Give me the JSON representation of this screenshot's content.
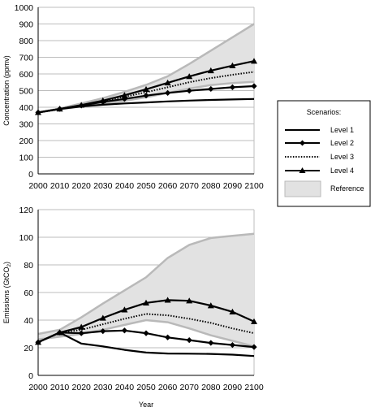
{
  "chart_data": [
    {
      "type": "line",
      "title": "",
      "xlabel": "",
      "ylabel": "Concentration (ppmv)",
      "x": [
        2000,
        2010,
        2020,
        2030,
        2040,
        2050,
        2060,
        2070,
        2080,
        2090,
        2100
      ],
      "xlim": [
        2000,
        2100
      ],
      "ylim": [
        0,
        1000
      ],
      "yticks": [
        0,
        100,
        200,
        300,
        400,
        500,
        600,
        700,
        800,
        900,
        1000
      ],
      "grid": "horizontal",
      "series": [
        {
          "name": "Level 1",
          "style": "solid",
          "marker": "none",
          "values": [
            369,
            390,
            405,
            415,
            423,
            429,
            435,
            440,
            444,
            447,
            450
          ]
        },
        {
          "name": "Level 2",
          "style": "solid",
          "marker": "diamond",
          "values": [
            369,
            390,
            410,
            432,
            450,
            470,
            486,
            499,
            510,
            520,
            527
          ]
        },
        {
          "name": "Level 3",
          "style": "dotted",
          "marker": "none",
          "values": [
            369,
            390,
            412,
            437,
            463,
            490,
            520,
            550,
            575,
            595,
            612
          ]
        },
        {
          "name": "Level 4",
          "style": "solid",
          "marker": "triangle",
          "values": [
            369,
            390,
            413,
            440,
            472,
            508,
            547,
            585,
            620,
            650,
            677
          ]
        }
      ],
      "reference_band": {
        "name": "Reference",
        "upper": [
          369,
          392,
          423,
          454,
          492,
          534,
          586,
          660,
          740,
          820,
          900
        ],
        "lower": [
          369,
          388,
          405,
          420,
          438,
          460,
          486,
          512,
          533,
          545,
          552
        ]
      }
    },
    {
      "type": "line",
      "title": "",
      "xlabel": "Year",
      "ylabel": "Emissions (GtCO",
      "ylabel_sub": "2",
      "ylabel_end": ")",
      "x": [
        2000,
        2010,
        2020,
        2030,
        2040,
        2050,
        2060,
        2070,
        2080,
        2090,
        2100
      ],
      "xlim": [
        2000,
        2100
      ],
      "ylim": [
        0,
        120
      ],
      "yticks": [
        0,
        20,
        40,
        60,
        80,
        100,
        120
      ],
      "grid": "horizontal",
      "series": [
        {
          "name": "Level 1",
          "style": "solid",
          "marker": "none",
          "values": [
            24,
            31,
            23,
            21,
            18.5,
            16.5,
            15.8,
            15.7,
            15.5,
            15,
            14
          ]
        },
        {
          "name": "Level 2",
          "style": "solid",
          "marker": "diamond",
          "values": [
            24,
            31,
            30.5,
            32,
            32.5,
            30.5,
            27.5,
            25.5,
            23.5,
            22,
            20.5
          ]
        },
        {
          "name": "Level 3",
          "style": "dotted",
          "marker": "none",
          "values": [
            24,
            31,
            33,
            37,
            41,
            44.5,
            43.5,
            41,
            38,
            34,
            30.5
          ]
        },
        {
          "name": "Level 4",
          "style": "solid",
          "marker": "triangle",
          "values": [
            24,
            31,
            35,
            41.5,
            47.5,
            52.5,
            54.5,
            54,
            50.5,
            46,
            39
          ]
        }
      ],
      "reference_band": {
        "name": "Reference",
        "upper": [
          30,
          33,
          42,
          52,
          61.5,
          71,
          85,
          94.5,
          99.5,
          101,
          102.5
        ],
        "lower": [
          26,
          28,
          30,
          33,
          36.5,
          40,
          38.5,
          34,
          29,
          25,
          21
        ]
      }
    }
  ],
  "legend": {
    "title": "Scenarios:",
    "placement": "right",
    "items": [
      "Level 1",
      "Level 2",
      "Level 3",
      "Level 4",
      "Reference"
    ]
  },
  "colors": {
    "line": "#000000",
    "reference_fill": "#e2e2e2",
    "reference_edge": "#b9b9b9",
    "grid": "#bdbdbd"
  }
}
